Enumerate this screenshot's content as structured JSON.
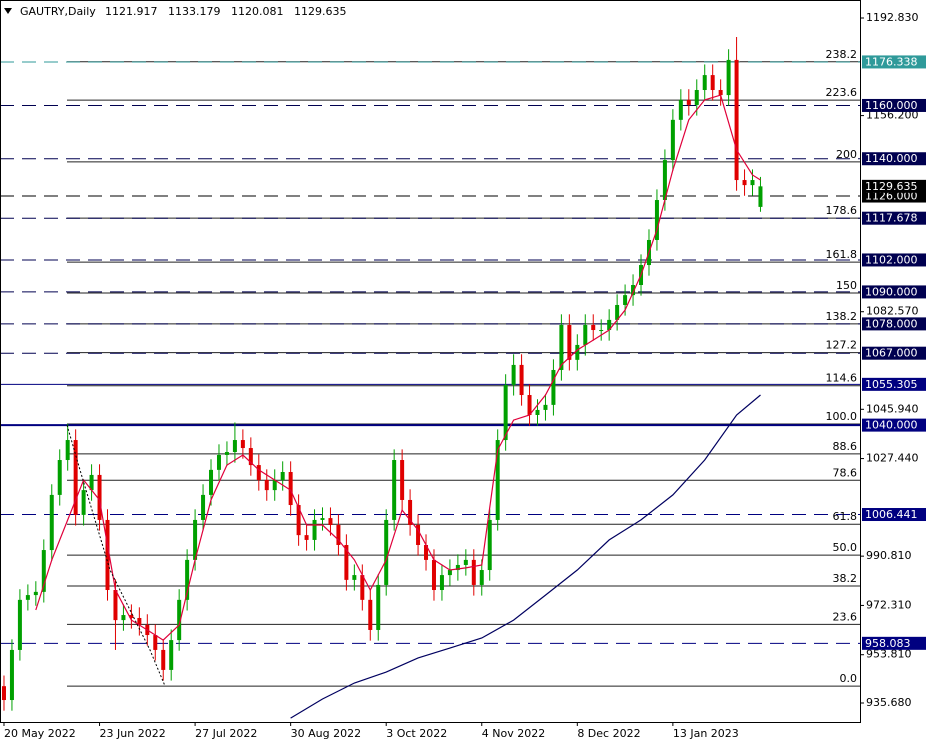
{
  "chart_data": {
    "type": "candlestick",
    "title": "GAUTRY,Daily",
    "x": [
      0,
      2,
      4,
      6,
      8,
      10,
      12,
      14,
      16,
      18,
      20,
      22,
      24,
      26,
      28,
      30,
      32,
      34,
      36,
      38,
      40,
      42,
      44,
      46,
      48,
      50,
      52,
      54,
      56,
      58,
      60,
      62,
      64,
      66,
      68,
      70,
      72,
      74,
      76,
      78,
      80,
      82,
      84,
      86,
      88,
      90,
      92,
      94,
      96,
      98,
      100,
      102,
      104,
      106,
      108,
      110,
      112,
      114,
      116,
      118,
      120,
      122,
      124,
      126,
      128,
      130,
      132,
      134,
      136,
      138,
      140,
      142,
      144,
      146,
      148,
      150,
      152,
      154,
      156,
      158,
      160,
      162,
      164,
      166,
      168,
      170,
      172,
      174,
      176,
      178,
      180,
      182,
      184,
      186,
      188,
      190
    ],
    "open": [
      942.0,
      936.8,
      955.6,
      974.4,
      976.2,
      977.4,
      993.1,
      1013.8,
      1026.9,
      1034.4,
      1006.3,
      1015.6,
      1021.3,
      1004.4,
      978.1,
      966.8,
      968.7,
      967.6,
      965.0,
      961.2,
      955.6,
      948.1,
      959.3,
      974.4,
      989.4,
      1004.4,
      1013.8,
      1023.2,
      1028.8,
      1029.9,
      1034.4,
      1031.4,
      1025.0,
      1019.4,
      1015.6,
      1019.4,
      1022.4,
      1010.0,
      998.7,
      996.9,
      1004.4,
      1005.1,
      1002.5,
      995.0,
      981.9,
      983.7,
      974.4,
      963.1,
      980.0,
      1004.4,
      1026.9,
      1011.9,
      1002.5,
      995.0,
      989.4,
      978.1,
      983.7,
      985.6,
      987.5,
      989.4,
      980.0,
      985.6,
      1004.4,
      1034.4,
      1055.1,
      1062.6,
      1051.3,
      1043.8,
      1045.7,
      1047.6,
      1060.7,
      1077.6,
      1064.5,
      1070.1,
      1077.6,
      1075.7,
      1075.7,
      1079.5,
      1085.1,
      1088.8,
      1092.6,
      1100.1,
      1109.5,
      1124.5,
      1139.5,
      1154.6,
      1162.1,
      1160.2,
      1165.8,
      1171.4,
      1165.8,
      1163.9,
      1177.1,
      1132.0,
      1130.1,
      1121.917
    ],
    "high": [
      946.0,
      959.6,
      978.4,
      980.2,
      981.4,
      997.1,
      1017.8,
      1030.9,
      1040.4,
      1038.4,
      1019.6,
      1025.3,
      1025.3,
      1008.4,
      982.1,
      972.7,
      972.7,
      971.6,
      969.0,
      965.2,
      959.6,
      963.3,
      978.4,
      993.4,
      1008.4,
      1017.8,
      1027.2,
      1032.8,
      1033.9,
      1041.0,
      1038.4,
      1035.4,
      1029.0,
      1023.4,
      1023.4,
      1026.4,
      1026.4,
      1014.0,
      1002.7,
      1008.4,
      1009.1,
      1009.1,
      1006.5,
      999.0,
      987.7,
      987.7,
      978.4,
      984.0,
      1008.4,
      1030.9,
      1030.9,
      1015.9,
      1006.5,
      999.0,
      993.4,
      987.7,
      989.6,
      991.5,
      993.4,
      993.4,
      989.6,
      1008.4,
      1038.4,
      1059.1,
      1066.6,
      1066.6,
      1055.3,
      1049.7,
      1051.6,
      1064.7,
      1081.6,
      1081.6,
      1074.1,
      1081.6,
      1081.6,
      1079.7,
      1083.5,
      1089.1,
      1092.8,
      1096.6,
      1104.1,
      1113.5,
      1128.5,
      1143.5,
      1158.6,
      1166.1,
      1166.1,
      1169.8,
      1175.4,
      1175.4,
      1169.8,
      1181.1,
      1185.7,
      1136.0,
      1136.0,
      1133.179
    ],
    "low": [
      932.8,
      932.8,
      951.6,
      970.4,
      972.2,
      973.4,
      989.1,
      1009.8,
      1022.9,
      1002.3,
      1002.3,
      1011.6,
      1000.4,
      974.1,
      955.6,
      962.8,
      963.6,
      961.0,
      957.2,
      951.6,
      944.1,
      944.1,
      955.3,
      970.4,
      985.4,
      1000.4,
      1009.8,
      1019.2,
      1024.8,
      1025.9,
      1027.4,
      1021.0,
      1015.4,
      1011.6,
      1011.6,
      1015.4,
      1006.0,
      994.7,
      992.9,
      992.9,
      1000.4,
      998.5,
      991.0,
      977.9,
      977.9,
      970.4,
      959.1,
      959.1,
      976.0,
      1000.4,
      1007.9,
      998.5,
      991.0,
      985.4,
      974.1,
      974.1,
      979.7,
      981.6,
      983.5,
      976.0,
      976.0,
      981.6,
      1000.4,
      1030.4,
      1051.1,
      1047.3,
      1039.8,
      1039.8,
      1041.7,
      1043.6,
      1056.7,
      1060.5,
      1060.5,
      1066.1,
      1071.7,
      1071.7,
      1071.7,
      1075.5,
      1081.1,
      1084.8,
      1088.6,
      1096.1,
      1105.5,
      1120.5,
      1135.5,
      1150.6,
      1156.2,
      1156.2,
      1161.8,
      1161.8,
      1159.9,
      1159.9,
      1128.0,
      1126.1,
      1126.1,
      1120.081
    ],
    "close": [
      936.8,
      955.6,
      974.4,
      976.2,
      977.4,
      993.1,
      1013.8,
      1026.9,
      1034.4,
      1006.3,
      1015.6,
      1021.3,
      1004.4,
      978.1,
      966.8,
      968.7,
      967.6,
      965.0,
      961.2,
      955.6,
      948.1,
      959.3,
      974.4,
      989.4,
      1004.4,
      1013.8,
      1023.2,
      1028.8,
      1029.9,
      1034.4,
      1031.4,
      1025.0,
      1019.4,
      1015.6,
      1019.4,
      1022.4,
      1010.0,
      998.7,
      996.9,
      1004.4,
      1005.1,
      1002.5,
      995.0,
      981.9,
      983.7,
      974.4,
      963.1,
      980.0,
      1004.4,
      1026.9,
      1011.9,
      1002.5,
      995.0,
      989.4,
      978.1,
      983.7,
      985.6,
      987.5,
      989.4,
      980.0,
      985.6,
      1004.4,
      1034.4,
      1055.1,
      1062.6,
      1051.3,
      1043.8,
      1045.7,
      1047.6,
      1060.7,
      1077.6,
      1064.5,
      1070.1,
      1077.6,
      1075.7,
      1075.7,
      1079.5,
      1085.1,
      1088.8,
      1092.6,
      1100.1,
      1109.5,
      1124.5,
      1139.5,
      1154.6,
      1162.1,
      1160.2,
      1165.8,
      1171.4,
      1165.8,
      1163.9,
      1177.1,
      1132.0,
      1130.1,
      1132.0,
      1129.635
    ],
    "up_color": "#00a000",
    "down_color": "#e00000",
    "ma_fast": {
      "color": "#e0003a",
      "x": [
        8,
        12,
        16,
        20,
        24,
        28,
        32,
        36,
        40,
        44,
        48,
        52,
        56,
        60,
        64,
        68,
        72,
        76,
        80,
        84,
        88,
        92,
        96,
        100,
        104,
        108,
        112,
        116,
        120,
        124,
        128,
        132,
        136,
        140,
        144,
        148,
        152,
        156,
        160,
        164,
        168,
        172,
        176,
        180,
        184,
        188,
        190
      ],
      "values": [
        970.6,
        989.4,
        1004.4,
        1019.4,
        1011.9,
        978.1,
        966.8,
        963.1,
        959.3,
        965.0,
        989.4,
        1011.9,
        1025.0,
        1028.8,
        1023.2,
        1019.4,
        1015.6,
        1002.5,
        1002.5,
        996.9,
        989.4,
        978.1,
        989.4,
        1008.1,
        1000.6,
        989.4,
        985.6,
        986.4,
        987.5,
        1030.7,
        1041.9,
        1043.8,
        1051.3,
        1062.6,
        1068.2,
        1071.9,
        1075.7,
        1083.2,
        1096.4,
        1113.3,
        1135.8,
        1154.6,
        1162.1,
        1163.9,
        1143.3,
        1133.9,
        1132.0
      ]
    },
    "ma_slow": {
      "color": "#000060",
      "x": [
        72,
        80,
        88,
        96,
        104,
        112,
        120,
        128,
        136,
        144,
        152,
        160,
        168,
        176,
        184,
        190
      ],
      "values": [
        930.0,
        937.2,
        943.2,
        947.3,
        952.6,
        956.3,
        960.1,
        966.8,
        976.2,
        985.6,
        996.9,
        1004.4,
        1013.8,
        1026.9,
        1043.8,
        1051.3
      ]
    },
    "levels": [
      {
        "value": 1176.338,
        "label": "1176.338",
        "color": "#2f9a9a",
        "dash": true,
        "width": 1
      },
      {
        "value": 1160,
        "label": "1160.000",
        "color": "#000050",
        "dash": true,
        "width": 1
      },
      {
        "value": 1140,
        "label": "1140.000",
        "color": "#000050",
        "dash": true,
        "width": 1
      },
      {
        "value": 1126,
        "label": "1126.000",
        "color": "#000000",
        "dash": true,
        "width": 1
      },
      {
        "value": 1117.678,
        "label": "1117.678",
        "color": "#000050",
        "dash": true,
        "width": 1
      },
      {
        "value": 1102,
        "label": "1102.000",
        "color": "#000050",
        "dash": true,
        "width": 1
      },
      {
        "value": 1090,
        "label": "1090.000",
        "color": "#000050",
        "dash": true,
        "width": 1
      },
      {
        "value": 1078,
        "label": "1078.000",
        "color": "#000050",
        "dash": true,
        "width": 1
      },
      {
        "value": 1067,
        "label": "1067.000",
        "color": "#000050",
        "dash": true,
        "width": 1
      },
      {
        "value": 1055.305,
        "label": "1055.305",
        "color": "#000080",
        "dash": false,
        "width": 1
      },
      {
        "value": 1040,
        "label": "1040.000",
        "color": "#000080",
        "dash": false,
        "width": 2
      },
      {
        "value": 1006.441,
        "label": "1006.441",
        "color": "#000080",
        "dash": true,
        "width": 1
      },
      {
        "value": 958.083,
        "label": "958.083",
        "color": "#000080",
        "dash": true,
        "width": 1
      }
    ],
    "fib": [
      {
        "label": "0.0",
        "value": 942.0
      },
      {
        "label": "23.6",
        "value": 965.2
      },
      {
        "label": "38.2",
        "value": 979.6
      },
      {
        "label": "50.0",
        "value": 991.2
      },
      {
        "label": "61.8",
        "value": 1002.8
      },
      {
        "label": "78.6",
        "value": 1019.3
      },
      {
        "label": "88.6",
        "value": 1029.2
      },
      {
        "label": "100.0",
        "value": 1040.4
      },
      {
        "label": "114.6",
        "value": 1054.8
      },
      {
        "label": "127.2",
        "value": 1067.2
      },
      {
        "label": "138.2",
        "value": 1078.0
      },
      {
        "label": "150",
        "value": 1089.6
      },
      {
        "label": "161.8",
        "value": 1101.2
      },
      {
        "label": "178.6",
        "value": 1117.7
      },
      {
        "label": "200",
        "value": 1138.8
      },
      {
        "label": "223.6",
        "value": 1162.0
      },
      {
        "label": "238.2",
        "value": 1176.4
      }
    ],
    "fib_color": "#222222",
    "xlim": [
      -1,
      215
    ],
    "xticks": [
      {
        "value": 0,
        "label": "20 May 2022"
      },
      {
        "value": 24,
        "label": "23 Jun 2022"
      },
      {
        "value": 48,
        "label": "27 Jul 2022"
      },
      {
        "value": 72,
        "label": "30 Aug 2022"
      },
      {
        "value": 96,
        "label": "3 Oct 2022"
      },
      {
        "value": 120,
        "label": "4 Nov 2022"
      },
      {
        "value": 144,
        "label": "8 Dec 2022"
      },
      {
        "value": 168,
        "label": "13 Jan 2023"
      }
    ],
    "ylim": [
      928.55,
      1199.59
    ],
    "yticks": [
      {
        "value": 1192.83,
        "label": "1192.830"
      },
      {
        "value": 1156.2,
        "label": "1156.200"
      },
      {
        "value": 1082.57,
        "label": "1082.570"
      },
      {
        "value": 1045.94,
        "label": "1045.940"
      },
      {
        "value": 1027.44,
        "label": "1027.440"
      },
      {
        "value": 990.81,
        "label": "990.810"
      },
      {
        "value": 972.31,
        "label": "972.310"
      },
      {
        "value": 953.81,
        "label": "953.810"
      },
      {
        "value": 935.68,
        "label": "935.680"
      }
    ]
  }
}
